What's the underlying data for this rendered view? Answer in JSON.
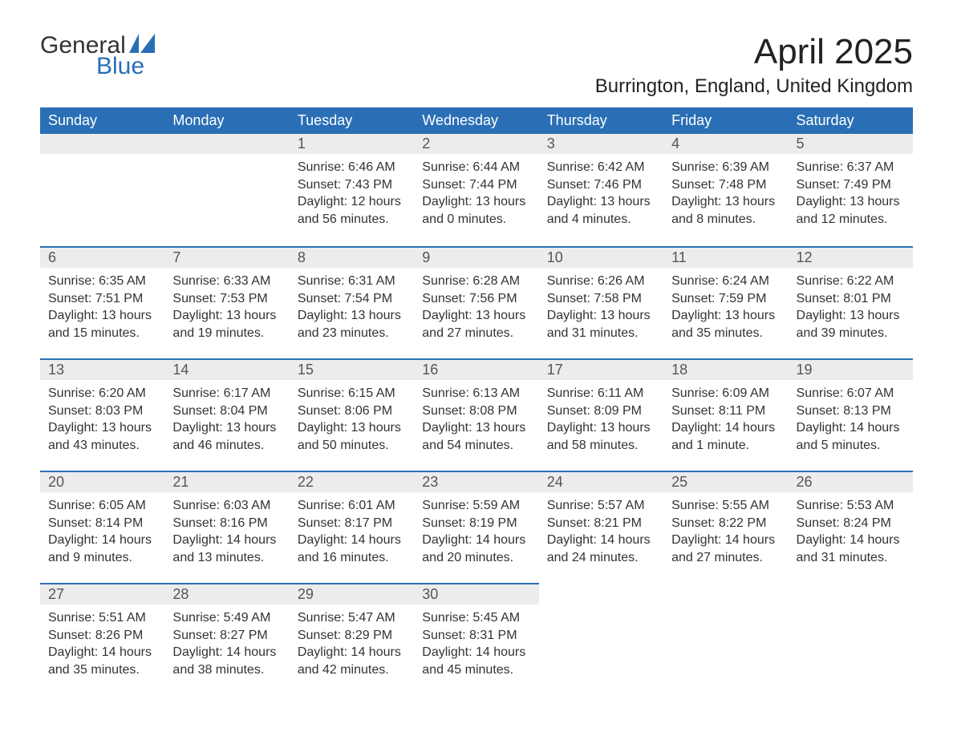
{
  "logo": {
    "word1": "General",
    "word2": "Blue",
    "icon_color": "#2a6fb5"
  },
  "title": "April 2025",
  "location": "Burrington, England, United Kingdom",
  "colors": {
    "header_bg": "#2a6fb5",
    "header_fg": "#ffffff",
    "daynum_bg": "#ececec",
    "daynum_fg": "#555555",
    "row_divider": "#2a6fb5",
    "body_bg": "#ffffff",
    "text": "#333333"
  },
  "typography": {
    "title_fontsize": 44,
    "location_fontsize": 24,
    "weekday_fontsize": 18,
    "daynum_fontsize": 18,
    "body_fontsize": 16,
    "font_family": "Segoe UI"
  },
  "layout": {
    "columns": 7,
    "rows": 5,
    "first_weekday": "Sunday",
    "blank_leading_cells": 2
  },
  "weekdays": [
    "Sunday",
    "Monday",
    "Tuesday",
    "Wednesday",
    "Thursday",
    "Friday",
    "Saturday"
  ],
  "labels": {
    "sunrise": "Sunrise:",
    "sunset": "Sunset:",
    "daylight": "Daylight:"
  },
  "days": [
    {
      "n": 1,
      "sunrise": "6:46 AM",
      "sunset": "7:43 PM",
      "daylight": "12 hours and 56 minutes."
    },
    {
      "n": 2,
      "sunrise": "6:44 AM",
      "sunset": "7:44 PM",
      "daylight": "13 hours and 0 minutes."
    },
    {
      "n": 3,
      "sunrise": "6:42 AM",
      "sunset": "7:46 PM",
      "daylight": "13 hours and 4 minutes."
    },
    {
      "n": 4,
      "sunrise": "6:39 AM",
      "sunset": "7:48 PM",
      "daylight": "13 hours and 8 minutes."
    },
    {
      "n": 5,
      "sunrise": "6:37 AM",
      "sunset": "7:49 PM",
      "daylight": "13 hours and 12 minutes."
    },
    {
      "n": 6,
      "sunrise": "6:35 AM",
      "sunset": "7:51 PM",
      "daylight": "13 hours and 15 minutes."
    },
    {
      "n": 7,
      "sunrise": "6:33 AM",
      "sunset": "7:53 PM",
      "daylight": "13 hours and 19 minutes."
    },
    {
      "n": 8,
      "sunrise": "6:31 AM",
      "sunset": "7:54 PM",
      "daylight": "13 hours and 23 minutes."
    },
    {
      "n": 9,
      "sunrise": "6:28 AM",
      "sunset": "7:56 PM",
      "daylight": "13 hours and 27 minutes."
    },
    {
      "n": 10,
      "sunrise": "6:26 AM",
      "sunset": "7:58 PM",
      "daylight": "13 hours and 31 minutes."
    },
    {
      "n": 11,
      "sunrise": "6:24 AM",
      "sunset": "7:59 PM",
      "daylight": "13 hours and 35 minutes."
    },
    {
      "n": 12,
      "sunrise": "6:22 AM",
      "sunset": "8:01 PM",
      "daylight": "13 hours and 39 minutes."
    },
    {
      "n": 13,
      "sunrise": "6:20 AM",
      "sunset": "8:03 PM",
      "daylight": "13 hours and 43 minutes."
    },
    {
      "n": 14,
      "sunrise": "6:17 AM",
      "sunset": "8:04 PM",
      "daylight": "13 hours and 46 minutes."
    },
    {
      "n": 15,
      "sunrise": "6:15 AM",
      "sunset": "8:06 PM",
      "daylight": "13 hours and 50 minutes."
    },
    {
      "n": 16,
      "sunrise": "6:13 AM",
      "sunset": "8:08 PM",
      "daylight": "13 hours and 54 minutes."
    },
    {
      "n": 17,
      "sunrise": "6:11 AM",
      "sunset": "8:09 PM",
      "daylight": "13 hours and 58 minutes."
    },
    {
      "n": 18,
      "sunrise": "6:09 AM",
      "sunset": "8:11 PM",
      "daylight": "14 hours and 1 minute."
    },
    {
      "n": 19,
      "sunrise": "6:07 AM",
      "sunset": "8:13 PM",
      "daylight": "14 hours and 5 minutes."
    },
    {
      "n": 20,
      "sunrise": "6:05 AM",
      "sunset": "8:14 PM",
      "daylight": "14 hours and 9 minutes."
    },
    {
      "n": 21,
      "sunrise": "6:03 AM",
      "sunset": "8:16 PM",
      "daylight": "14 hours and 13 minutes."
    },
    {
      "n": 22,
      "sunrise": "6:01 AM",
      "sunset": "8:17 PM",
      "daylight": "14 hours and 16 minutes."
    },
    {
      "n": 23,
      "sunrise": "5:59 AM",
      "sunset": "8:19 PM",
      "daylight": "14 hours and 20 minutes."
    },
    {
      "n": 24,
      "sunrise": "5:57 AM",
      "sunset": "8:21 PM",
      "daylight": "14 hours and 24 minutes."
    },
    {
      "n": 25,
      "sunrise": "5:55 AM",
      "sunset": "8:22 PM",
      "daylight": "14 hours and 27 minutes."
    },
    {
      "n": 26,
      "sunrise": "5:53 AM",
      "sunset": "8:24 PM",
      "daylight": "14 hours and 31 minutes."
    },
    {
      "n": 27,
      "sunrise": "5:51 AM",
      "sunset": "8:26 PM",
      "daylight": "14 hours and 35 minutes."
    },
    {
      "n": 28,
      "sunrise": "5:49 AM",
      "sunset": "8:27 PM",
      "daylight": "14 hours and 38 minutes."
    },
    {
      "n": 29,
      "sunrise": "5:47 AM",
      "sunset": "8:29 PM",
      "daylight": "14 hours and 42 minutes."
    },
    {
      "n": 30,
      "sunrise": "5:45 AM",
      "sunset": "8:31 PM",
      "daylight": "14 hours and 45 minutes."
    }
  ]
}
